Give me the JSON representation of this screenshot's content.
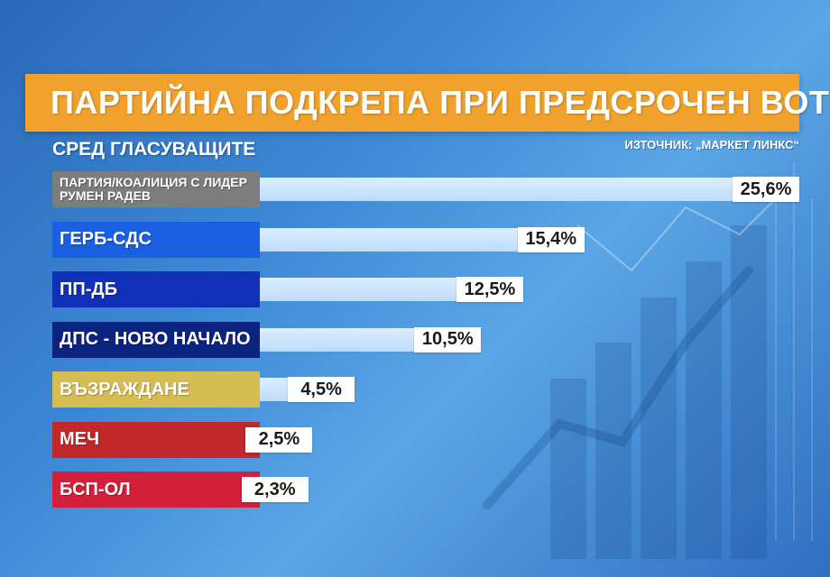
{
  "header": {
    "title": "ПАРТИЙНА ПОДКРЕПА ПРИ ПРЕДСРОЧЕН ВОТ",
    "subtitle": "СРЕД ГЛАСУВАЩИТЕ",
    "source": "ИЗТОЧНИК: „МАРКЕТ ЛИНКС“"
  },
  "colors": {
    "title_bg": "#f0a22c",
    "bar_fill": "#c8e2fc"
  },
  "chart_data": {
    "type": "bar",
    "orientation": "horizontal",
    "title": "ПАРТИЙНА ПОДКРЕПА ПРИ ПРЕДСРОЧЕН ВОТ",
    "subtitle": "СРЕД ГЛАСУВАЩИТЕ",
    "xlim": [
      0,
      28
    ],
    "grid": false,
    "categories": [
      "ПАРТИЯ/КОАЛИЦИЯ С ЛИДЕР РУМЕН РАДЕВ",
      "ГЕРБ-СДС",
      "ПП-ДБ",
      "ДПС - НОВО НАЧАЛО",
      "ВЪЗРАЖДАНЕ",
      "МЕЧ",
      "БСП-ОЛ"
    ],
    "values": [
      25.6,
      15.4,
      12.5,
      10.5,
      4.5,
      2.5,
      2.3
    ],
    "value_labels": [
      "25,6%",
      "15,4%",
      "12,5%",
      "10,5%",
      "4,5%",
      "2,5%",
      "2,3%"
    ],
    "label_colors": [
      "#7d7d7d",
      "#1a5fe0",
      "#1030b8",
      "#0c2480",
      "#d6bd52",
      "#c0282c",
      "#d41f3a"
    ]
  }
}
